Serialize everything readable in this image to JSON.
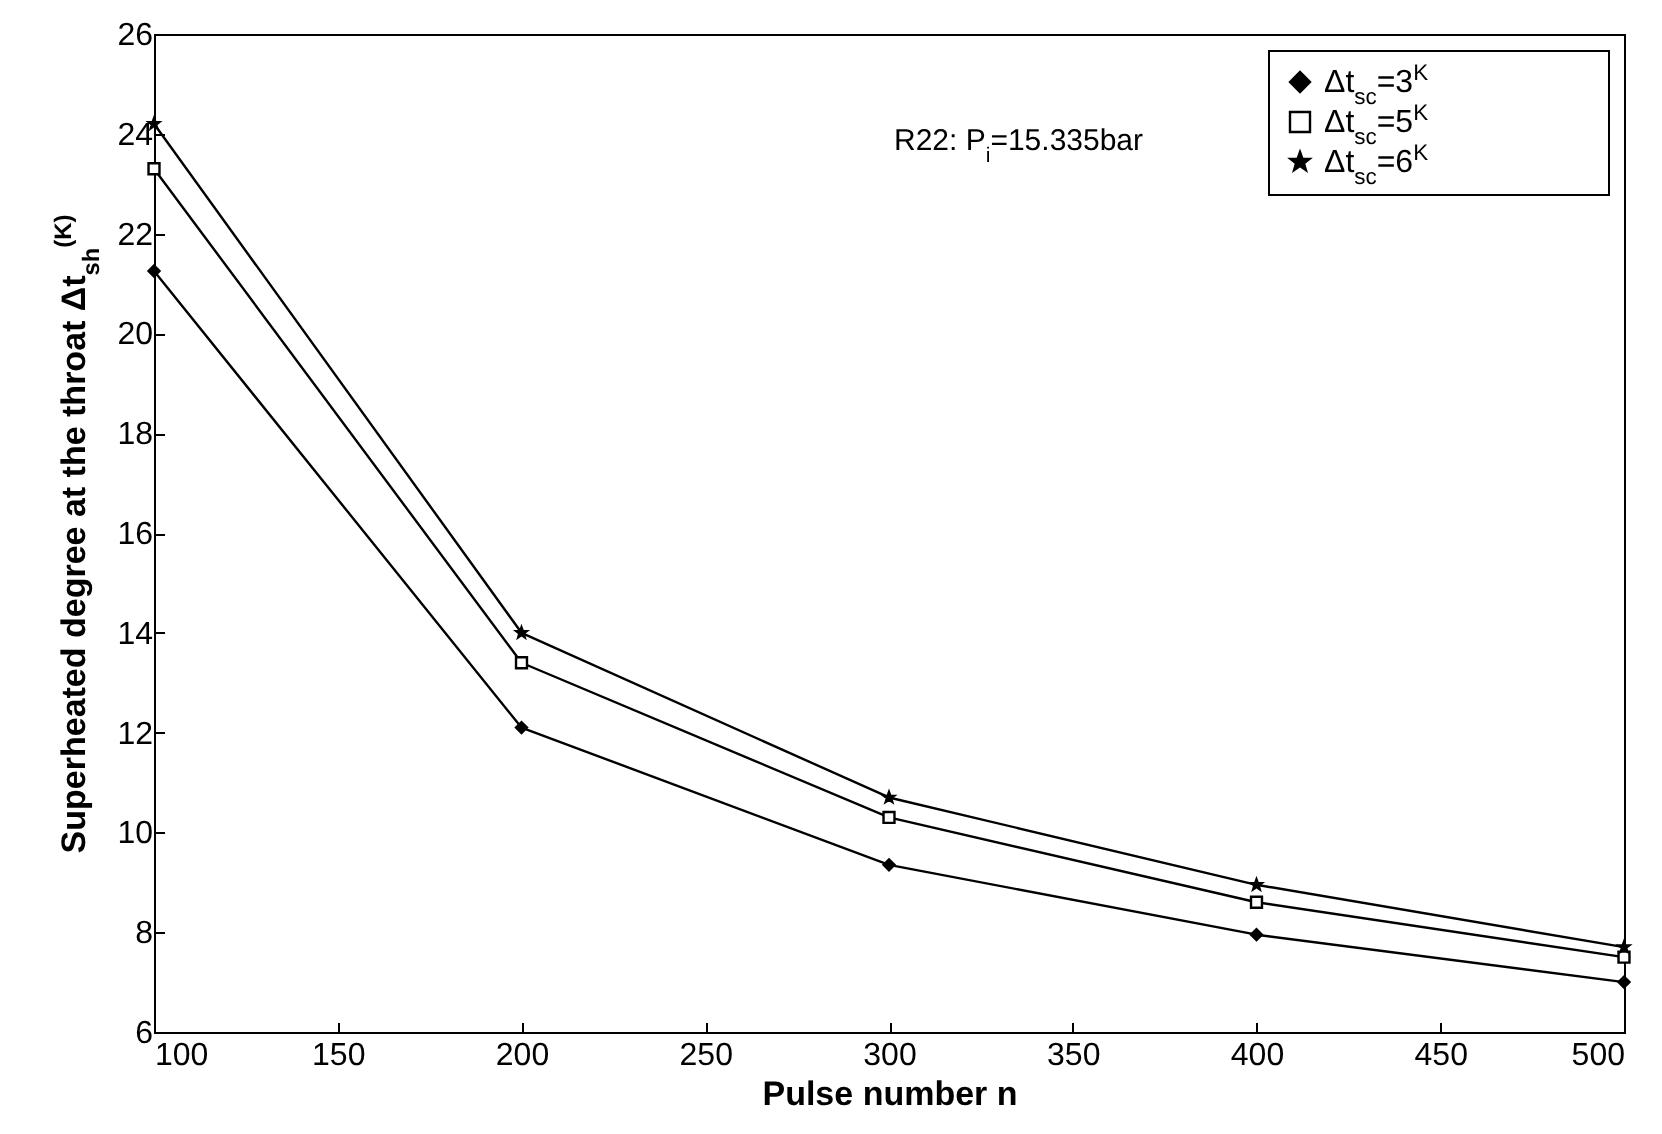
{
  "chart_data": {
    "type": "line",
    "xlabel": "Pulse number n",
    "ylabel": "Superheated degree at the throat Δt$_{sh}$$^{(K)}$",
    "x": [
      100,
      200,
      300,
      400,
      500
    ],
    "xlim": [
      100,
      500
    ],
    "xticks": [
      100,
      150,
      200,
      250,
      300,
      350,
      400,
      450,
      500
    ],
    "ylim": [
      6,
      26
    ],
    "yticks": [
      6,
      8,
      10,
      12,
      14,
      16,
      18,
      20,
      22,
      24,
      26
    ],
    "grid": false,
    "legend": "top right",
    "annotations": [
      "R22: P$_{i}$=15.335bar"
    ],
    "series": [
      {
        "name": "Δt$_{sc}$=3$^{K}$",
        "color": "#000000",
        "marker": "diamond",
        "values": [
          21.25,
          12.1,
          9.35,
          7.95,
          7.0
        ]
      },
      {
        "name": "Δt$_{sc}$=5$^{K}$",
        "color": "#000000",
        "marker": "square",
        "values": [
          23.3,
          13.4,
          10.3,
          8.6,
          7.5
        ]
      },
      {
        "name": "Δt$_{sc}$=6$^{K}$",
        "color": "#000000",
        "marker": "star",
        "values": [
          24.2,
          14.0,
          10.7,
          8.95,
          7.7
        ]
      }
    ]
  }
}
